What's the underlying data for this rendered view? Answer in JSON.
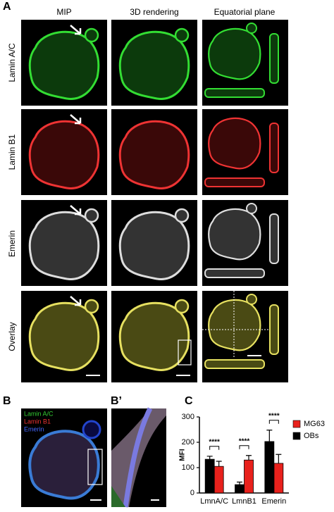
{
  "panel_labels": {
    "a": "A",
    "b": "B",
    "b_prime": "B’",
    "c": "C"
  },
  "panel_a": {
    "columns": [
      "MIP",
      "3D rendering",
      "Equatorial plane"
    ],
    "rows": [
      "Lamin A/C",
      "Lamin B1",
      "Emerin",
      "Overlay"
    ]
  },
  "panel_b": {
    "legend": [
      "Lamin A/C",
      "Lamin B1",
      "Emerin"
    ]
  },
  "chart_data": {
    "type": "bar",
    "y_label": "MFI",
    "categories": [
      "LmnA/C",
      "LmnB1",
      "Emerin"
    ],
    "series": [
      {
        "name": "MG63",
        "color": "#e8211c",
        "values": [
          105,
          130,
          117
        ],
        "errors": [
          20,
          18,
          35
        ]
      },
      {
        "name": "OBs",
        "color": "#000000",
        "values": [
          133,
          33,
          203
        ],
        "errors": [
          12,
          10,
          45
        ]
      }
    ],
    "ylim": [
      0,
      300
    ],
    "yticks": [
      0,
      100,
      200,
      300
    ],
    "annotations": [
      "****",
      "****",
      "****"
    ],
    "legend": "right"
  }
}
